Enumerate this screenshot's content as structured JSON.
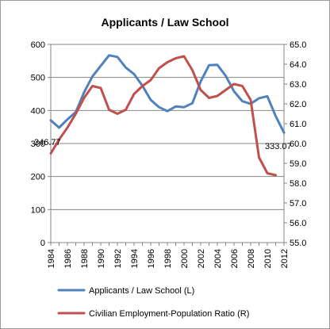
{
  "chart_data": {
    "type": "line",
    "title": "Applicants / Law School",
    "x": [
      1984,
      1985,
      1986,
      1987,
      1988,
      1989,
      1990,
      1991,
      1992,
      1993,
      1994,
      1995,
      1996,
      1997,
      1998,
      1999,
      2000,
      2001,
      2002,
      2003,
      2004,
      2005,
      2006,
      2007,
      2008,
      2009,
      2010,
      2011,
      2012
    ],
    "x_tick_labels": [
      "1984",
      "1986",
      "1988",
      "1990",
      "1992",
      "1994",
      "1996",
      "1998",
      "2000",
      "2002",
      "2004",
      "2006",
      "2008",
      "2010",
      "2012"
    ],
    "y_left": {
      "ylim": [
        0,
        600
      ],
      "ticks": [
        "0",
        "100",
        "200",
        "300",
        "400",
        "500",
        "600"
      ]
    },
    "y_right": {
      "ylim": [
        55.0,
        65.0
      ],
      "ticks": [
        "55.0",
        "56.0",
        "57.0",
        "58.0",
        "59.0",
        "60.0",
        "61.0",
        "62.0",
        "63.0",
        "64.0",
        "65.0"
      ]
    },
    "grid": "horizontal",
    "legend_position": "bottom",
    "series": [
      {
        "name": "Applicants / Law School (L)",
        "axis": "left",
        "color": "#4F81BD",
        "values": [
          370,
          348,
          373,
          395,
          455,
          503,
          535,
          567,
          562,
          530,
          510,
          475,
          432,
          410,
          398,
          412,
          410,
          422,
          488,
          537,
          538,
          505,
          458,
          428,
          420,
          437,
          443,
          383,
          333
        ]
      },
      {
        "name": "Civilian Employment-Population  Ratio (R)",
        "axis": "right",
        "color": "#C0504D",
        "values": [
          59.5,
          60.2,
          60.8,
          61.5,
          62.3,
          62.9,
          62.8,
          61.7,
          61.5,
          61.7,
          62.5,
          62.9,
          63.2,
          63.8,
          64.1,
          64.3,
          64.4,
          63.7,
          62.7,
          62.3,
          62.4,
          62.7,
          63.0,
          62.9,
          62.2,
          59.3,
          58.5,
          58.4,
          null
        ]
      }
    ],
    "annotations": [
      "346.77",
      "333.07"
    ]
  }
}
